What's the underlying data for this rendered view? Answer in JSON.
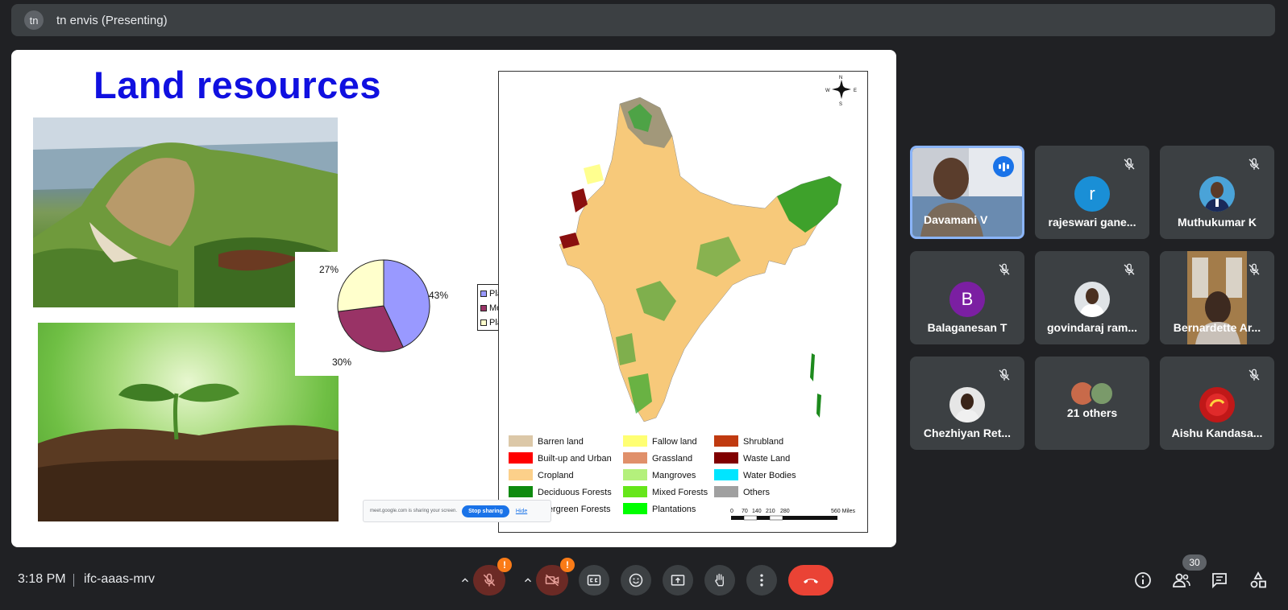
{
  "presenter_bar": {
    "avatar_initials": "tn",
    "title": "tn envis (Presenting)"
  },
  "slide": {
    "title": "Land resources",
    "pie": {
      "labels": {
        "plain": "43%",
        "mountains": "30%",
        "plateau": "27%"
      },
      "legend": [
        "Plain",
        "Mountains",
        "Plateau"
      ],
      "values": [
        43,
        30,
        27
      ],
      "colors": [
        "#9999ff",
        "#993366",
        "#ffffcc"
      ]
    },
    "map": {
      "compass": {
        "n": "N",
        "s": "S",
        "e": "E",
        "w": "W"
      },
      "legend": [
        {
          "label": "Barren land",
          "color": "#dcc8a8"
        },
        {
          "label": "Built-up and Urban",
          "color": "#ff0000"
        },
        {
          "label": "Cropland",
          "color": "#fcd08a"
        },
        {
          "label": "Deciduous Forests",
          "color": "#0f8a0f"
        },
        {
          "label": "Evergreen Forests",
          "color": "#006400"
        },
        {
          "label": "Fallow land",
          "color": "#ffff73"
        },
        {
          "label": "Grassland",
          "color": "#e0906a"
        },
        {
          "label": "Mangroves",
          "color": "#b4f07c"
        },
        {
          "label": "Mixed Forests",
          "color": "#66e61a"
        },
        {
          "label": "Plantations",
          "color": "#00ff00"
        },
        {
          "label": "Shrubland",
          "color": "#c03a10"
        },
        {
          "label": "Waste Land",
          "color": "#800000"
        },
        {
          "label": "Water Bodies",
          "color": "#00e5ff"
        },
        {
          "label": "Others",
          "color": "#a0a0a0"
        }
      ],
      "scale_ticks": [
        "0",
        "70",
        "140",
        "210",
        "280",
        "560 Miles"
      ]
    },
    "share_bar": {
      "message": "meet.google.com is sharing your screen.",
      "stop": "Stop sharing",
      "hide": "Hide"
    }
  },
  "participants": [
    {
      "name": "Davamani V",
      "type": "video",
      "speaking": true
    },
    {
      "name": "rajeswari gane...",
      "type": "letter",
      "letter": "r",
      "color": "#1a8fd6",
      "muted": true
    },
    {
      "name": "Muthukumar K",
      "type": "photo",
      "muted": true
    },
    {
      "name": "Balaganesan T",
      "type": "letter",
      "letter": "B",
      "color": "#7b1fa2",
      "muted": true
    },
    {
      "name": "govindaraj ram...",
      "type": "photo",
      "muted": true
    },
    {
      "name": "Bernardette Ar...",
      "type": "video",
      "muted": true
    },
    {
      "name": "Chezhiyan Ret...",
      "type": "photo",
      "muted": true
    },
    {
      "name": "21 others",
      "type": "group"
    },
    {
      "name": "Aishu Kandasa...",
      "type": "photo",
      "muted": true
    }
  ],
  "bottom_bar": {
    "time": "3:18 PM",
    "meeting_code": "ifc-aaas-mrv",
    "participant_count": "30",
    "warning_mark": "!"
  }
}
